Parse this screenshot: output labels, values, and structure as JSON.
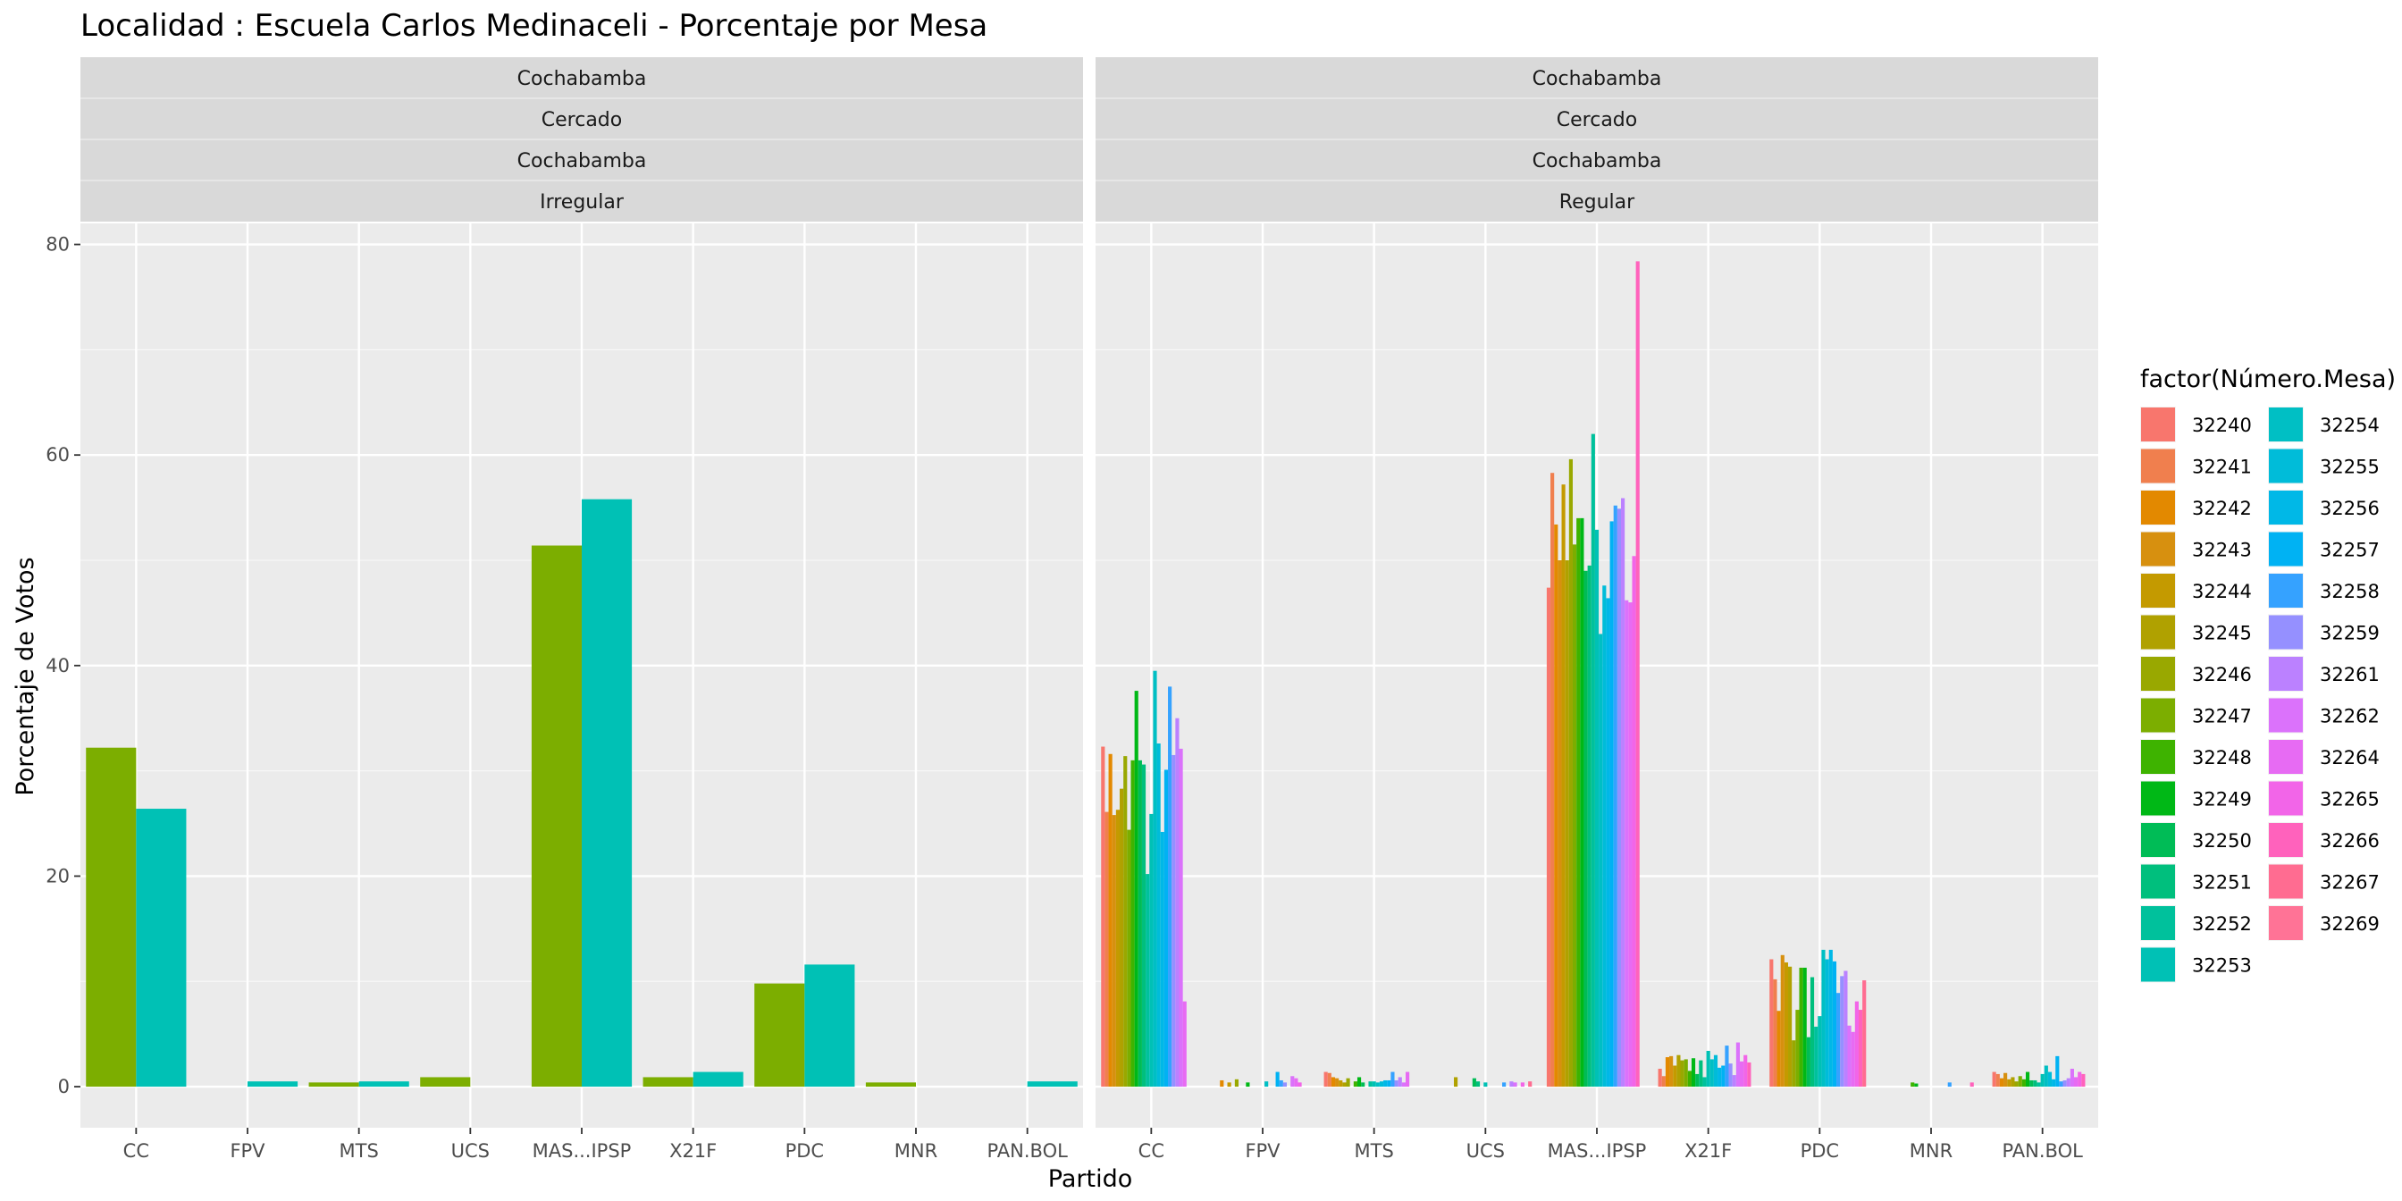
{
  "chart_data": {
    "type": "bar",
    "title": "Localidad : Escuela Carlos Medinaceli - Porcentaje por Mesa",
    "xlabel": "Partido",
    "ylabel": "Porcentaje de Votos",
    "ylim": [
      -3.9,
      82
    ],
    "yticks": [
      0,
      20,
      40,
      60,
      80
    ],
    "grid": true,
    "legend_title": "factor(Número.Mesa)",
    "legend_position": "right",
    "categories": [
      "CC",
      "FPV",
      "MTS",
      "UCS",
      "MAS...IPSP",
      "X21F",
      "PDC",
      "MNR",
      "PAN.BOL"
    ],
    "mesas": [
      "32240",
      "32241",
      "32242",
      "32243",
      "32244",
      "32245",
      "32246",
      "32247",
      "32248",
      "32249",
      "32250",
      "32251",
      "32252",
      "32253",
      "32254",
      "32255",
      "32256",
      "32257",
      "32258",
      "32259",
      "32261",
      "32262",
      "32264",
      "32265",
      "32266",
      "32267",
      "32269"
    ],
    "colors": [
      "#F8766D",
      "#F07F4E",
      "#E38900",
      "#D7900F",
      "#C49A00",
      "#B0A100",
      "#99A800",
      "#7CAE00",
      "#3EB300",
      "#00B816",
      "#00BC56",
      "#00BF7D",
      "#00C19C",
      "#00C1B5",
      "#00BFC4",
      "#00BCD9",
      "#00B8E7",
      "#00B2F3",
      "#35A2FF",
      "#9590FF",
      "#BB81FF",
      "#DB72FB",
      "#E76BF3",
      "#F265E8",
      "#FF62BC",
      "#FF6C91",
      "#FF7396"
    ],
    "panels": [
      {
        "strips": [
          "Cochabamba",
          "Cercado",
          "Cochabamba",
          "Irregular"
        ],
        "mesas": [
          "32247",
          "32253"
        ],
        "values": [
          [
            32.2,
            0,
            0.4,
            0.9,
            51.4,
            0.9,
            9.8,
            0.4,
            0
          ],
          [
            26.4,
            0.5,
            0.5,
            0,
            55.8,
            1.4,
            11.6,
            0,
            0.5
          ]
        ]
      },
      {
        "strips": [
          "Cochabamba",
          "Cercado",
          "Cochabamba",
          "Regular"
        ],
        "mesas": [
          "32240",
          "32241",
          "32242",
          "32243",
          "32244",
          "32245",
          "32246",
          "32247",
          "32248",
          "32249",
          "32250",
          "32251",
          "32252",
          "32253",
          "32254",
          "32255",
          "32256",
          "32257",
          "32258",
          "32259",
          "32261",
          "32262",
          "32264",
          "32265",
          "32266",
          "32267",
          "32269"
        ],
        "values": [
          [
            32.3,
            0,
            1.4,
            0,
            47.4,
            1.7,
            12.1,
            0,
            1.4
          ],
          [
            26.1,
            0,
            1.3,
            0,
            58.3,
            1.0,
            10.2,
            0,
            1.2
          ],
          [
            31.6,
            0.6,
            0.9,
            0,
            53.4,
            2.8,
            7.2,
            0,
            0.8
          ],
          [
            25.8,
            0,
            0.8,
            0,
            50.0,
            2.9,
            12.5,
            0,
            1.3
          ],
          [
            26.3,
            0.4,
            0.6,
            0,
            57.2,
            2.0,
            11.8,
            0,
            0.7
          ],
          [
            28.3,
            0,
            0.4,
            0.9,
            50.0,
            3.0,
            11.4,
            0,
            0.9
          ],
          [
            31.4,
            0.7,
            0.8,
            0,
            59.6,
            2.5,
            4.4,
            0,
            0.5
          ],
          [
            24.4,
            0,
            0,
            0,
            51.5,
            2.6,
            7.3,
            0,
            1.0
          ],
          [
            31.0,
            0,
            0.5,
            0,
            54.0,
            1.5,
            11.3,
            0.4,
            0.7
          ],
          [
            37.6,
            0.4,
            0.9,
            0,
            54.0,
            2.7,
            11.3,
            0.3,
            1.4
          ],
          [
            31.0,
            0,
            0.4,
            0.8,
            49.0,
            1.2,
            4.7,
            0,
            0.6
          ],
          [
            30.6,
            0,
            0,
            0.5,
            49.5,
            2.5,
            10.4,
            0,
            0.6
          ],
          [
            20.2,
            0,
            0.5,
            0,
            62.0,
            0.9,
            5.7,
            0,
            0.4
          ],
          [
            25.9,
            0,
            0.5,
            0.4,
            52.9,
            3.4,
            6.7,
            0,
            1.2
          ],
          [
            39.5,
            0.5,
            0.4,
            0,
            43.0,
            2.6,
            13.0,
            0,
            2.0
          ],
          [
            32.6,
            0,
            0.5,
            0,
            47.6,
            3.0,
            12.1,
            0,
            1.4
          ],
          [
            24.2,
            0,
            0.6,
            0,
            46.4,
            1.8,
            13.0,
            0,
            0.7
          ],
          [
            30.1,
            1.4,
            0.6,
            0,
            53.7,
            2.0,
            11.9,
            0,
            2.9
          ],
          [
            38.0,
            0.6,
            1.4,
            0.4,
            55.2,
            3.9,
            8.9,
            0.4,
            0.5
          ],
          [
            31.5,
            0.4,
            0.6,
            0,
            54.9,
            2.2,
            10.5,
            0,
            0.6
          ],
          [
            35.0,
            0,
            0.9,
            0.5,
            55.9,
            1.1,
            11.0,
            0,
            0.8
          ],
          [
            32.1,
            1.0,
            0.4,
            0.4,
            46.2,
            4.2,
            5.8,
            0,
            1.7
          ],
          [
            8.1,
            0.8,
            1.4,
            0,
            46.0,
            2.4,
            5.2,
            0,
            0.9
          ],
          [
            0,
            0.4,
            0,
            0.4,
            50.4,
            3.0,
            8.1,
            0,
            1.4
          ],
          [
            0,
            0,
            0,
            0,
            78.4,
            2.3,
            7.3,
            0.4,
            1.2
          ],
          [
            0,
            0,
            0,
            0.5,
            0,
            0,
            10.1,
            0,
            0
          ],
          [
            0,
            0,
            0,
            0,
            0,
            0,
            0,
            0,
            0
          ]
        ]
      }
    ]
  }
}
